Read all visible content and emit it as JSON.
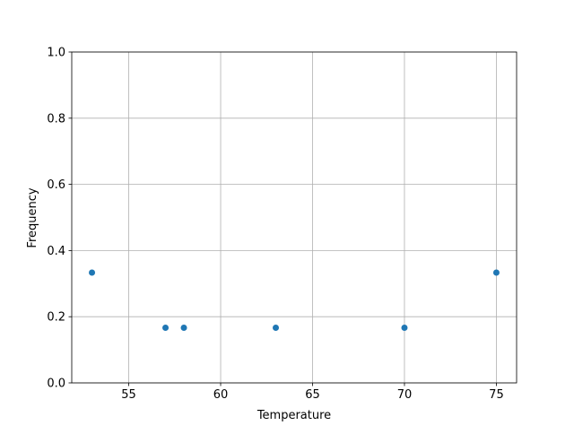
{
  "chart_data": {
    "type": "scatter",
    "title": "",
    "xlabel": "Temperature",
    "ylabel": "Frequency",
    "x": [
      53,
      57,
      58,
      63,
      70,
      75
    ],
    "y": [
      0.3333,
      0.1667,
      0.1667,
      0.1667,
      0.1667,
      0.3333
    ],
    "xlim": [
      51.9,
      76.1
    ],
    "ylim": [
      0.0,
      1.0
    ],
    "xticks": [
      55,
      60,
      65,
      70,
      75
    ],
    "xtick_labels": [
      "55",
      "60",
      "65",
      "70",
      "75"
    ],
    "yticks": [
      0.0,
      0.2,
      0.4,
      0.6,
      0.8,
      1.0
    ],
    "ytick_labels": [
      "0.0",
      "0.2",
      "0.4",
      "0.6",
      "0.8",
      "1.0"
    ],
    "grid": true,
    "marker_color": "#1f77b4",
    "grid_color": "#b0b0b0"
  }
}
